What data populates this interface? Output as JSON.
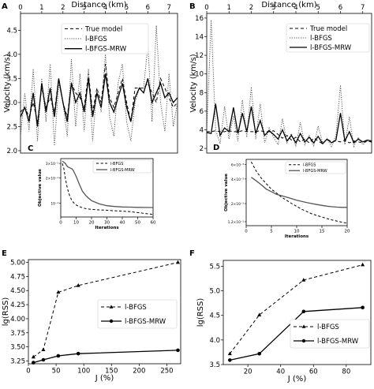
{
  "chart_data": [
    {
      "panel": "A",
      "type": "line",
      "title": "Distance (km)",
      "xlabel": "",
      "ylabel": "Velocity (km/s)",
      "xlim": [
        0,
        7.4
      ],
      "ylim": [
        1.95,
        4.85
      ],
      "xticks": [
        "0",
        "1",
        "2",
        "3",
        "4",
        "5",
        "6",
        "7"
      ],
      "yticks": [
        "2.0",
        "2.5",
        "3.0",
        "3.5",
        "4.0",
        "4.5"
      ],
      "legend_position": "top-center",
      "series": [
        {
          "name": "True model",
          "style": "dashed",
          "color": "#000000",
          "x": [
            0,
            0.2,
            0.4,
            0.6,
            0.8,
            1.0,
            1.2,
            1.4,
            1.6,
            1.8,
            2.0,
            2.2,
            2.4,
            2.6,
            2.8,
            3.0,
            3.2,
            3.4,
            3.6,
            3.8,
            4.0,
            4.2,
            4.4,
            4.6,
            4.8,
            5.0,
            5.2,
            5.4,
            5.6,
            5.8,
            6.0,
            6.2,
            6.4,
            6.6,
            6.8,
            7.0,
            7.2,
            7.4
          ],
          "y": [
            2.8,
            2.9,
            2.7,
            3.0,
            2.6,
            3.3,
            2.9,
            3.1,
            2.8,
            3.5,
            3.0,
            2.7,
            3.4,
            3.2,
            3.1,
            2.9,
            3.6,
            2.8,
            3.3,
            3.0,
            3.8,
            3.1,
            2.9,
            3.2,
            3.5,
            3.0,
            2.6,
            3.3,
            3.3,
            3.3,
            3.4,
            3.2,
            3.0,
            3.5,
            3.3,
            3.1,
            2.9,
            3.0
          ]
        },
        {
          "name": "l-BFGS",
          "style": "dotted",
          "color": "#555555",
          "x": [
            0,
            0.2,
            0.4,
            0.6,
            0.8,
            1.0,
            1.2,
            1.4,
            1.6,
            1.8,
            2.0,
            2.2,
            2.4,
            2.6,
            2.8,
            3.0,
            3.2,
            3.4,
            3.6,
            3.8,
            4.0,
            4.2,
            4.4,
            4.6,
            4.8,
            5.0,
            5.2,
            5.4,
            5.6,
            5.8,
            6.0,
            6.2,
            6.4,
            6.6,
            6.8,
            7.0,
            7.2,
            7.4
          ],
          "y": [
            2.3,
            3.2,
            2.4,
            3.7,
            2.2,
            3.5,
            2.6,
            3.8,
            2.1,
            3.4,
            3.0,
            2.3,
            3.9,
            2.5,
            3.6,
            2.4,
            3.7,
            2.2,
            3.3,
            2.8,
            4.0,
            2.7,
            2.3,
            3.4,
            3.8,
            2.6,
            2.2,
            3.0,
            3.3,
            3.3,
            4.2,
            2.6,
            4.6,
            3.0,
            2.4,
            3.6,
            2.5,
            3.0
          ]
        },
        {
          "name": "l-BFGS-MRW",
          "style": "solid",
          "color": "#000000",
          "x": [
            0,
            0.2,
            0.4,
            0.6,
            0.8,
            1.0,
            1.2,
            1.4,
            1.6,
            1.8,
            2.0,
            2.2,
            2.4,
            2.6,
            2.8,
            3.0,
            3.2,
            3.4,
            3.6,
            3.8,
            4.0,
            4.2,
            4.4,
            4.6,
            4.8,
            5.0,
            5.2,
            5.4,
            5.6,
            5.8,
            6.0,
            6.2,
            6.4,
            6.6,
            6.8,
            7.0,
            7.2,
            7.4
          ],
          "y": [
            2.7,
            2.9,
            2.6,
            3.2,
            2.5,
            3.4,
            2.8,
            3.3,
            2.7,
            3.5,
            3.0,
            2.6,
            3.4,
            3.0,
            3.2,
            2.8,
            3.5,
            2.7,
            3.2,
            2.9,
            3.6,
            3.0,
            2.8,
            3.1,
            3.4,
            2.9,
            2.6,
            3.1,
            3.3,
            3.2,
            3.5,
            3.0,
            3.2,
            3.4,
            3.1,
            3.2,
            3.0,
            3.1
          ]
        }
      ]
    },
    {
      "panel": "B",
      "type": "line",
      "title": "Distance (km)",
      "xlabel": "",
      "ylabel": "Velocity (km/s)",
      "xlim": [
        0,
        7.4
      ],
      "ylim": [
        1.5,
        16.5
      ],
      "xticks": [
        "0",
        "1",
        "2",
        "3",
        "4",
        "5",
        "6",
        "7"
      ],
      "yticks": [
        "2",
        "4",
        "6",
        "8",
        "10",
        "12",
        "14",
        "16"
      ],
      "legend_position": "top-right",
      "series": [
        {
          "name": "True model",
          "style": "dashed",
          "color": "#000000",
          "x": [
            0,
            0.2,
            0.4,
            0.6,
            0.8,
            1.0,
            1.2,
            1.4,
            1.6,
            1.8,
            2.0,
            2.2,
            2.4,
            2.6,
            2.8,
            3.0,
            3.2,
            3.4,
            3.6,
            3.8,
            4.0,
            4.2,
            4.4,
            4.6,
            4.8,
            5.0,
            5.2,
            5.4,
            5.6,
            5.8,
            6.0,
            6.2,
            6.4,
            6.6,
            6.8,
            7.0,
            7.2,
            7.4
          ],
          "y": [
            3.8,
            3.8,
            3.9,
            3.8,
            3.8,
            3.9,
            3.8,
            3.8,
            3.9,
            3.8,
            3.8,
            3.8,
            3.9,
            3.8,
            3.8,
            3.9,
            3.5,
            3.1,
            3.4,
            2.9,
            3.2,
            2.7,
            3.0,
            2.6,
            3.1,
            2.8,
            2.5,
            3.0,
            2.7,
            2.8,
            2.7,
            2.9,
            2.6,
            2.8,
            2.7,
            2.6,
            2.8,
            2.7
          ]
        },
        {
          "name": "l-BFGS",
          "style": "dotted",
          "color": "#555555",
          "x": [
            0,
            0.2,
            0.4,
            0.6,
            0.8,
            1.0,
            1.2,
            1.4,
            1.6,
            1.8,
            2.0,
            2.2,
            2.4,
            2.6,
            2.8,
            3.0,
            3.2,
            3.4,
            3.6,
            3.8,
            4.0,
            4.2,
            4.4,
            4.6,
            4.8,
            5.0,
            5.2,
            5.4,
            5.6,
            5.8,
            6.0,
            6.2,
            6.4,
            6.6,
            6.8,
            7.0,
            7.2,
            7.4
          ],
          "y": [
            3.8,
            15.8,
            4.0,
            2.5,
            6.5,
            3.0,
            5.5,
            2.8,
            7.2,
            3.2,
            8.6,
            3.0,
            6.8,
            2.6,
            4.2,
            3.2,
            2.4,
            5.2,
            2.6,
            3.6,
            2.2,
            4.8,
            2.4,
            3.4,
            2.2,
            4.4,
            2.6,
            3.0,
            2.2,
            3.4,
            8.8,
            2.4,
            5.4,
            2.2,
            3.2,
            2.4,
            2.8,
            2.6
          ]
        },
        {
          "name": "l-BFGS-MRW",
          "style": "solid",
          "color": "#000000",
          "x": [
            0,
            0.2,
            0.4,
            0.6,
            0.8,
            1.0,
            1.2,
            1.4,
            1.6,
            1.8,
            2.0,
            2.2,
            2.4,
            2.6,
            2.8,
            3.0,
            3.2,
            3.4,
            3.6,
            3.8,
            4.0,
            4.2,
            4.4,
            4.6,
            4.8,
            5.0,
            5.2,
            5.4,
            5.6,
            5.8,
            6.0,
            6.2,
            6.4,
            6.6,
            6.8,
            7.0,
            7.2,
            7.4
          ],
          "y": [
            3.7,
            3.6,
            6.8,
            3.4,
            4.2,
            3.8,
            6.4,
            3.6,
            5.8,
            3.8,
            6.5,
            3.6,
            5.0,
            3.4,
            3.9,
            3.5,
            3.0,
            4.0,
            2.8,
            3.4,
            2.6,
            3.6,
            2.7,
            3.2,
            2.6,
            3.3,
            2.5,
            3.0,
            2.6,
            2.9,
            5.8,
            2.8,
            3.8,
            2.6,
            3.0,
            2.7,
            2.9,
            2.8
          ]
        }
      ]
    },
    {
      "panel": "C",
      "type": "line",
      "xlabel": "Iterations",
      "ylabel": "Objective value",
      "xlim": [
        0,
        60
      ],
      "xticks": [
        "0",
        "10",
        "20",
        "30",
        "40",
        "50",
        "60"
      ],
      "yscale": "log",
      "ytick_labels": [
        "3×10⁻¹",
        "2×10⁻¹",
        "10⁻¹"
      ],
      "legend_position": "top-right",
      "series": [
        {
          "name": "l-BFGS",
          "style": "dashed",
          "color": "#000000",
          "x": [
            1,
            2,
            3,
            4,
            5,
            6,
            7,
            8,
            10,
            12,
            14,
            16,
            18,
            20,
            25,
            30,
            35,
            40,
            45,
            50,
            55,
            60
          ],
          "y": [
            0.3,
            0.26,
            0.2,
            0.16,
            0.135,
            0.12,
            0.11,
            0.103,
            0.095,
            0.091,
            0.088,
            0.086,
            0.085,
            0.084,
            0.083,
            0.082,
            0.081,
            0.08,
            0.079,
            0.077,
            0.075,
            0.073
          ]
        },
        {
          "name": "l-BFGS-MRW",
          "style": "solid",
          "color": "#555555",
          "x": [
            1,
            2,
            3,
            4,
            5,
            6,
            7,
            8,
            10,
            12,
            14,
            16,
            18,
            20,
            25,
            30,
            35,
            40,
            45,
            50,
            55,
            60
          ],
          "y": [
            0.32,
            0.31,
            0.3,
            0.28,
            0.27,
            0.265,
            0.26,
            0.25,
            0.21,
            0.17,
            0.14,
            0.125,
            0.115,
            0.107,
            0.098,
            0.093,
            0.091,
            0.09,
            0.0895,
            0.089,
            0.0888,
            0.0886
          ]
        }
      ]
    },
    {
      "panel": "D",
      "type": "line",
      "xlabel": "Iterations",
      "ylabel": "Objective value",
      "xlim": [
        0,
        20
      ],
      "xticks": [
        "0",
        "5",
        "10",
        "15",
        "20"
      ],
      "yscale": "log",
      "ytick_labels": [
        "6×10⁻³",
        "4×10⁻³",
        "2×10⁻³",
        "1.2×10⁻³"
      ],
      "legend_position": "top-right",
      "series": [
        {
          "name": "l-BFGS",
          "style": "dashed",
          "color": "#000000",
          "x": [
            1,
            2,
            3,
            4,
            5,
            6,
            7,
            8,
            9,
            10,
            11,
            12,
            13,
            14,
            15,
            16,
            17,
            18,
            19,
            20
          ],
          "y": [
            0.0065,
            0.005,
            0.0041,
            0.0035,
            0.003,
            0.0027,
            0.0024,
            0.0022,
            0.002,
            0.00185,
            0.0017,
            0.0016,
            0.0015,
            0.00143,
            0.00137,
            0.00131,
            0.00126,
            0.00122,
            0.00118,
            0.00115
          ]
        },
        {
          "name": "l-BFGS-MRW",
          "style": "solid",
          "color": "#555555",
          "x": [
            1,
            2,
            3,
            4,
            5,
            6,
            7,
            8,
            9,
            10,
            11,
            12,
            13,
            14,
            15,
            16,
            17,
            18,
            19,
            20
          ],
          "y": [
            0.0042,
            0.0038,
            0.0034,
            0.003,
            0.0028,
            0.0026,
            0.0025,
            0.0024,
            0.0023,
            0.0022,
            0.00213,
            0.00206,
            0.002,
            0.00195,
            0.0019,
            0.00186,
            0.00183,
            0.00181,
            0.0018,
            0.0018
          ]
        }
      ]
    },
    {
      "panel": "E",
      "type": "line",
      "xlabel": "J (%)",
      "ylabel": "lg(RSS)",
      "xlim": [
        0,
        275
      ],
      "ylim": [
        3.2,
        5.05
      ],
      "xticks": [
        "0",
        "50",
        "100",
        "150",
        "200",
        "250"
      ],
      "yticks": [
        "3.25",
        "3.50",
        "3.75",
        "4.00",
        "4.25",
        "4.50",
        "4.75",
        "5.00"
      ],
      "legend_position": "center-left",
      "series": [
        {
          "name": "l-BFGS",
          "style": "dashed",
          "marker": "triangle",
          "color": "#000000",
          "x": [
            9,
            27,
            54,
            90,
            270
          ],
          "y": [
            3.32,
            3.45,
            4.47,
            4.59,
            5.0
          ]
        },
        {
          "name": "l-BFGS-MRW",
          "style": "solid",
          "marker": "circle",
          "color": "#000000",
          "x": [
            9,
            27,
            54,
            90,
            270
          ],
          "y": [
            3.22,
            3.27,
            3.34,
            3.38,
            3.44
          ]
        }
      ]
    },
    {
      "panel": "F",
      "type": "line",
      "xlabel": "J (%)",
      "ylabel": "lg(RSS)",
      "xlim": [
        5,
        95
      ],
      "ylim": [
        3.5,
        5.62
      ],
      "xticks": [
        "20",
        "40",
        "60",
        "80"
      ],
      "yticks": [
        "3.5",
        "4.0",
        "4.5",
        "5.0",
        "5.5"
      ],
      "legend_position": "lower-left",
      "series": [
        {
          "name": "l-BFGS",
          "style": "dashed",
          "marker": "triangle",
          "color": "#000000",
          "x": [
            9,
            27,
            54,
            90
          ],
          "y": [
            3.72,
            4.51,
            5.22,
            5.53
          ]
        },
        {
          "name": "l-BFGS-MRW",
          "style": "solid",
          "marker": "circle",
          "color": "#000000",
          "x": [
            9,
            27,
            54,
            90
          ],
          "y": [
            3.59,
            3.72,
            4.58,
            4.66
          ]
        }
      ]
    }
  ]
}
